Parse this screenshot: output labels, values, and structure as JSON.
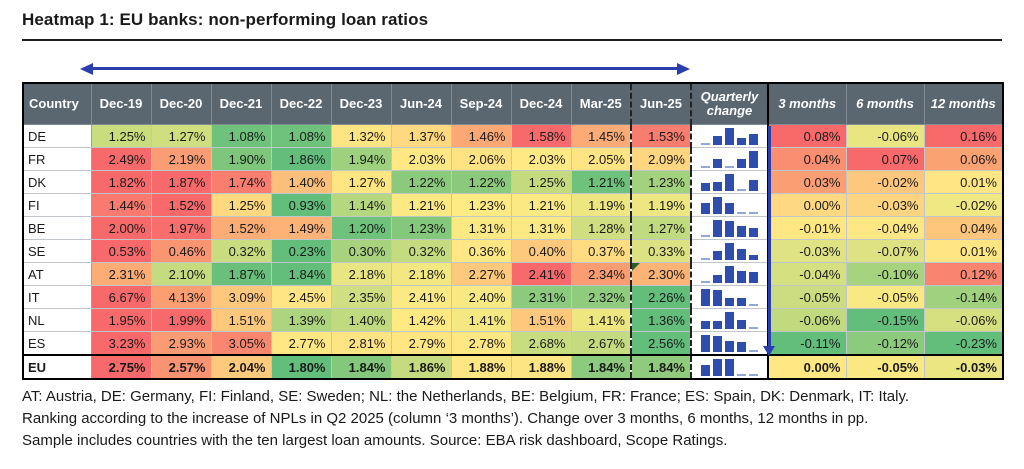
{
  "title": "Heatmap 1: EU banks: non-performing loan ratios",
  "colors": {
    "header_bg": "#5b6770",
    "header_text": "#ffffff",
    "arrow_blue": "#2b3eae",
    "sparkline_blue": "#2e4dad",
    "annotation_triangle_green": "#2e5c26",
    "scale_red": "#f8696b",
    "scale_yellow": "#ffeb84",
    "scale_green": "#63be7b"
  },
  "chart_data": {
    "type": "heatmap",
    "title": "Heatmap 1: EU banks: non-performing loan ratios",
    "unit": "%",
    "headers": {
      "country": "Country",
      "dates": [
        "Dec-19",
        "Dec-20",
        "Dec-21",
        "Dec-22",
        "Dec-23",
        "Jun-24",
        "Sep-24",
        "Dec-24",
        "Mar-25",
        "Jun-25"
      ],
      "quarterly_change": "Quarterly change",
      "changes": [
        "3 months",
        "6 months",
        "12 months"
      ]
    },
    "rows": [
      {
        "code": "DE",
        "values": [
          1.25,
          1.27,
          1.08,
          1.08,
          1.32,
          1.37,
          1.46,
          1.58,
          1.45,
          1.53
        ],
        "value_colors": [
          "#c9dc7e",
          "#cfdf80",
          "#6fc27b",
          "#6fc27b",
          "#ffe483",
          "#fed980",
          "#fba875",
          "#f8696b",
          "#fbac76",
          "#f97d6e"
        ],
        "spark": [
          0.08,
          0.4,
          1.0,
          0.3,
          0.6
        ],
        "changes": [
          0.08,
          -0.06,
          0.16
        ],
        "change_colors": [
          "#f8696b",
          "#e9e682",
          "#f8696b"
        ]
      },
      {
        "code": "FR",
        "values": [
          2.49,
          2.19,
          1.9,
          1.86,
          1.94,
          2.03,
          2.06,
          2.03,
          2.05,
          2.09
        ],
        "value_colors": [
          "#f8696b",
          "#fb9d74",
          "#7dc67c",
          "#63be7b",
          "#9ed17e",
          "#ffe884",
          "#ffe282",
          "#ffe984",
          "#ffe483",
          "#fed680"
        ],
        "spark": [
          0.08,
          0.45,
          0.08,
          0.45,
          1.0
        ],
        "changes": [
          0.04,
          0.07,
          0.06
        ],
        "change_colors": [
          "#fa8e70",
          "#f8696b",
          "#fba273"
        ]
      },
      {
        "code": "DK",
        "values": [
          1.82,
          1.87,
          1.74,
          1.4,
          1.27,
          1.22,
          1.22,
          1.25,
          1.21,
          1.23
        ],
        "value_colors": [
          "#f8696b",
          "#f8696b",
          "#f97e70",
          "#fcbf7b",
          "#ffe683",
          "#8bca7d",
          "#8bca7d",
          "#c4da7f",
          "#6fc27b",
          "#a2d27e"
        ],
        "spark": [
          0.35,
          0.4,
          1.0,
          0.06,
          0.55
        ],
        "changes": [
          0.03,
          -0.02,
          0.01
        ],
        "change_colors": [
          "#fb9e73",
          "#fdc77d",
          "#ffe583"
        ]
      },
      {
        "code": "FI",
        "values": [
          1.44,
          1.52,
          1.25,
          0.93,
          1.14,
          1.21,
          1.23,
          1.21,
          1.19,
          1.19
        ],
        "value_colors": [
          "#f97a6e",
          "#f8696b",
          "#ffd980",
          "#63be7b",
          "#b5d780",
          "#fce983",
          "#ffea84",
          "#fbe983",
          "#ede681",
          "#ede681"
        ],
        "spark": [
          0.55,
          1.0,
          0.55,
          0.06,
          0.06
        ],
        "changes": [
          0.0,
          -0.03,
          -0.02
        ],
        "change_colors": [
          "#fed981",
          "#fdd47f",
          "#f0e883"
        ]
      },
      {
        "code": "BE",
        "values": [
          2.0,
          1.97,
          1.52,
          1.49,
          1.2,
          1.23,
          1.31,
          1.31,
          1.28,
          1.27
        ],
        "value_colors": [
          "#f8696b",
          "#f86e6c",
          "#fcad75",
          "#fcb377",
          "#6ec27b",
          "#84c87c",
          "#fce983",
          "#fce983",
          "#cede80",
          "#c0da7f"
        ],
        "spark": [
          0.08,
          1.0,
          0.95,
          0.55,
          0.4
        ],
        "changes": [
          -0.01,
          -0.04,
          0.04
        ],
        "change_colors": [
          "#ffe883",
          "#ffe783",
          "#fdc67c"
        ]
      },
      {
        "code": "SE",
        "values": [
          0.53,
          0.46,
          0.32,
          0.23,
          0.3,
          0.32,
          0.36,
          0.4,
          0.37,
          0.33
        ],
        "value_colors": [
          "#f8696b",
          "#fa9572",
          "#c9dc7f",
          "#63be7b",
          "#a7d37e",
          "#c4db7f",
          "#ffe883",
          "#fdc97d",
          "#ffdc81",
          "#dce182"
        ],
        "spark": [
          0.06,
          0.45,
          1.0,
          0.55,
          0.12
        ],
        "changes": [
          -0.03,
          -0.07,
          0.01
        ],
        "change_colors": [
          "#e0e383",
          "#dfe282",
          "#ffe583"
        ]
      },
      {
        "code": "AT",
        "values": [
          2.31,
          2.1,
          1.87,
          1.84,
          2.18,
          2.18,
          2.27,
          2.41,
          2.34,
          2.3
        ],
        "value_colors": [
          "#fcac74",
          "#c5db80",
          "#6ac07b",
          "#63be7b",
          "#e9e582",
          "#f3e782",
          "#fdc97c",
          "#f8696b",
          "#fb9d73",
          "#fcb376"
        ],
        "spark": [
          0.08,
          0.35,
          1.0,
          0.65,
          0.6
        ],
        "changes": [
          -0.04,
          -0.1,
          0.12
        ],
        "change_colors": [
          "#d5e081",
          "#a5d37e",
          "#f98570"
        ],
        "annotation": {
          "col": "Jun-25",
          "type": "corner-triangle",
          "color": "#2e5c26"
        }
      },
      {
        "code": "IT",
        "values": [
          6.67,
          4.13,
          3.09,
          2.45,
          2.35,
          2.41,
          2.4,
          2.31,
          2.32,
          2.26
        ],
        "value_colors": [
          "#f8696b",
          "#fb9f72",
          "#fdc87c",
          "#ffe583",
          "#cfdf81",
          "#fbe983",
          "#f9e983",
          "#8cca7d",
          "#90cc7d",
          "#63be7b"
        ],
        "spark": [
          1.0,
          0.95,
          0.35,
          0.35,
          0.06
        ],
        "changes": [
          -0.05,
          -0.05,
          -0.14
        ],
        "change_colors": [
          "#cbdd80",
          "#f9e983",
          "#a0d17e"
        ]
      },
      {
        "code": "NL",
        "values": [
          1.95,
          1.99,
          1.51,
          1.39,
          1.4,
          1.42,
          1.41,
          1.51,
          1.41,
          1.36
        ],
        "value_colors": [
          "#f8696b",
          "#f8696b",
          "#fdc77c",
          "#add47f",
          "#c0da80",
          "#ffe983",
          "#f5e882",
          "#fdc77c",
          "#eee681",
          "#63be7b"
        ],
        "spark": [
          0.35,
          0.35,
          1.0,
          0.4,
          0.06
        ],
        "changes": [
          -0.06,
          -0.15,
          -0.06
        ],
        "change_colors": [
          "#c1da7e",
          "#63be7b",
          "#d7e081"
        ]
      },
      {
        "code": "ES",
        "values": [
          3.23,
          2.93,
          3.05,
          2.77,
          2.81,
          2.79,
          2.78,
          2.68,
          2.67,
          2.56
        ],
        "value_colors": [
          "#f8696b",
          "#fa9b73",
          "#f98770",
          "#ffe883",
          "#fee483",
          "#ffe683",
          "#ffe783",
          "#c8dc80",
          "#c5db80",
          "#63be7b"
        ],
        "spark": [
          1.0,
          0.9,
          0.55,
          0.5,
          0.06
        ],
        "changes": [
          -0.11,
          -0.12,
          -0.23
        ],
        "change_colors": [
          "#63be7b",
          "#8cca7d",
          "#63be7b"
        ]
      },
      {
        "code": "EU",
        "bold": true,
        "values": [
          2.75,
          2.57,
          2.04,
          1.8,
          1.84,
          1.86,
          1.88,
          1.88,
          1.84,
          1.84
        ],
        "value_colors": [
          "#f8696b",
          "#fa9372",
          "#fdc97d",
          "#63be7b",
          "#84c87c",
          "#c6db80",
          "#ffe883",
          "#fee583",
          "#8cca7d",
          "#90cb7d"
        ],
        "spark": [
          0.55,
          1.0,
          1.0,
          0.06,
          0.06
        ],
        "changes": [
          0.0,
          -0.05,
          -0.03
        ],
        "change_colors": [
          "#ffe784",
          "#fae983",
          "#ebe682"
        ]
      }
    ]
  },
  "footnotes": [
    "AT: Austria, DE: Germany, FI: Finland, SE: Sweden; NL: the Netherlands, BE: Belgium, FR: France; ES: Spain, DK: Denmark, IT: Italy.",
    "Ranking according to the increase of NPLs in Q2 2025 (column ‘3 months’). Change over 3 months, 6 months, 12 months in pp.",
    "Sample includes countries with the ten largest loan amounts. Source: EBA risk dashboard, Scope Ratings."
  ]
}
